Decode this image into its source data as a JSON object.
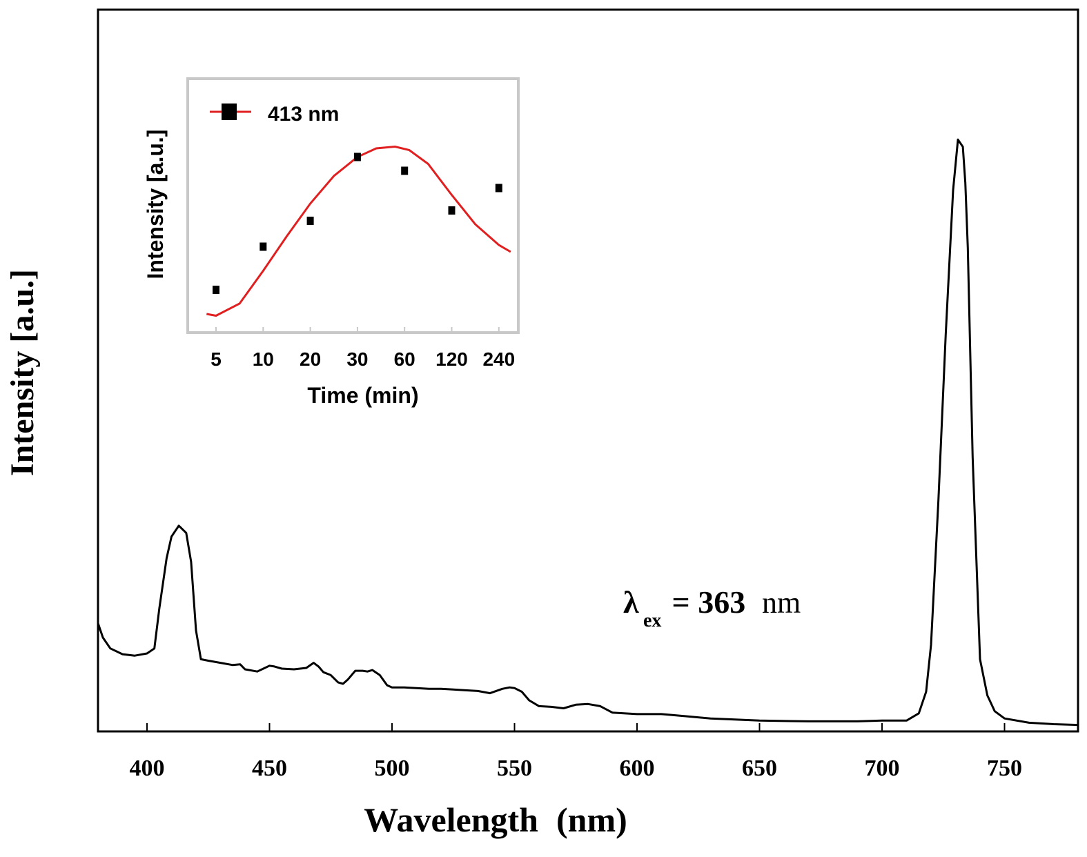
{
  "chart_data": [
    {
      "type": "line",
      "xlabel": "Wavelength",
      "xlabel_unit": "(nm)",
      "ylabel": "Intensity [a.u.]",
      "xlim": [
        380,
        780
      ],
      "ylim": [
        0,
        100
      ],
      "yticks_shown": false,
      "grid": false,
      "x_ticks": [
        "400",
        "450",
        "500",
        "550",
        "600",
        "650",
        "700",
        "750"
      ],
      "annotation": {
        "symbol": "λ",
        "subscript": "ex",
        "text": " = 363 ",
        "unit": "nm"
      },
      "series": [
        {
          "color": "#000000",
          "x": [
            380,
            382,
            385,
            390,
            395,
            400,
            403,
            405,
            408,
            410,
            413,
            416,
            418,
            420,
            422,
            425,
            430,
            435,
            438,
            440,
            445,
            450,
            452,
            455,
            460,
            465,
            468,
            470,
            472,
            475,
            478,
            480,
            482,
            485,
            488,
            490,
            492,
            495,
            498,
            500,
            505,
            510,
            515,
            520,
            525,
            530,
            535,
            540,
            545,
            548,
            550,
            553,
            556,
            560,
            565,
            570,
            575,
            580,
            585,
            590,
            600,
            610,
            620,
            630,
            650,
            670,
            690,
            700,
            710,
            715,
            718,
            720,
            723,
            726,
            729,
            731,
            733,
            734,
            735,
            737,
            740,
            743,
            746,
            750,
            760,
            770,
            780
          ],
          "y": [
            15,
            13,
            11.5,
            10.7,
            10.5,
            10.8,
            11.5,
            17,
            24,
            27,
            28.5,
            27.5,
            23.5,
            14,
            10,
            9.8,
            9.5,
            9.2,
            9.3,
            8.6,
            8.3,
            9.1,
            9.0,
            8.7,
            8.6,
            8.8,
            9.5,
            9.0,
            8.2,
            7.8,
            6.8,
            6.6,
            7.2,
            8.4,
            8.4,
            8.3,
            8.5,
            7.8,
            6.4,
            6.1,
            6.1,
            6.0,
            5.9,
            5.9,
            5.8,
            5.7,
            5.6,
            5.3,
            5.9,
            6.1,
            6.0,
            5.5,
            4.3,
            3.5,
            3.4,
            3.2,
            3.7,
            3.8,
            3.5,
            2.6,
            2.4,
            2.4,
            2.1,
            1.8,
            1.5,
            1.4,
            1.4,
            1.5,
            1.5,
            2.5,
            5.5,
            12,
            32,
            55,
            75,
            82,
            81,
            76,
            67,
            38,
            10,
            5,
            2.8,
            1.8,
            1.2,
            1.0,
            0.9
          ]
        }
      ]
    },
    {
      "type": "scatter",
      "inset": true,
      "xlabel": "Time (min)",
      "ylabel": "Intensity [a.u.]",
      "categories": [
        "5",
        "10",
        "20",
        "30",
        "60",
        "120",
        "240"
      ],
      "ylim": [
        0,
        10
      ],
      "grid": false,
      "legend": {
        "position": "top-left",
        "label": "413 nm"
      },
      "series": [
        {
          "marker": "square",
          "marker_color": "#000000",
          "values": [
            1.6,
            4.1,
            5.6,
            9.3,
            8.5,
            6.2,
            7.5
          ]
        }
      ],
      "fit": {
        "color": "#e02020",
        "x_index": [
          -0.2,
          0,
          0.5,
          1,
          1.5,
          2,
          2.5,
          3,
          3.4,
          3.8,
          4.1,
          4.5,
          5,
          5.5,
          6,
          6.25
        ],
        "values": [
          0.2,
          0.1,
          0.8,
          2.7,
          4.7,
          6.6,
          8.2,
          9.3,
          9.8,
          9.9,
          9.7,
          8.9,
          7.1,
          5.4,
          4.2,
          3.8
        ]
      }
    }
  ]
}
